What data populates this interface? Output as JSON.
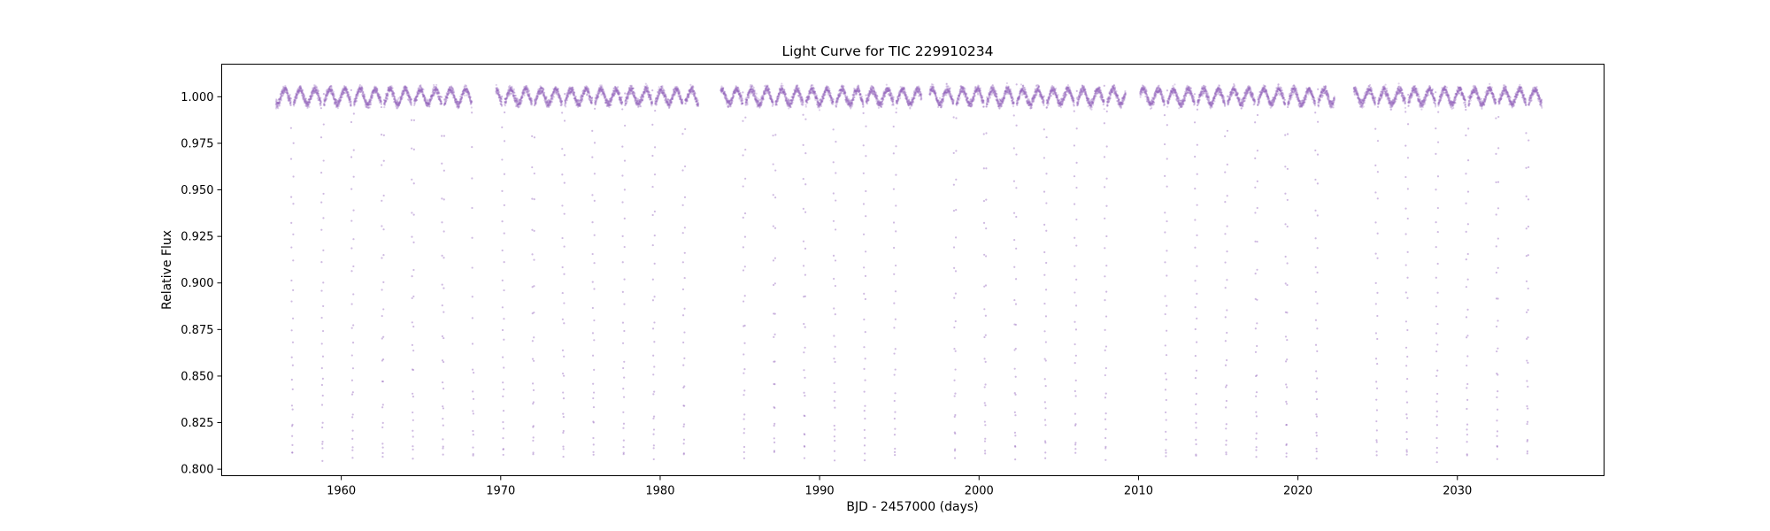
{
  "chart_data": {
    "type": "scatter",
    "title": "Light Curve for TIC 229910234",
    "xlabel": "BJD - 2457000 (days)",
    "ylabel": "Relative Flux",
    "xlim": [
      1952.5,
      2039.2
    ],
    "ylim": [
      0.7965,
      1.0175
    ],
    "xticks": [
      1960,
      1970,
      1980,
      1990,
      2000,
      2010,
      2020,
      2030
    ],
    "xtick_labels": [
      "1960",
      "1970",
      "1980",
      "1990",
      "2000",
      "2010",
      "2020",
      "2030"
    ],
    "yticks": [
      0.8,
      0.825,
      0.85,
      0.875,
      0.9,
      0.925,
      0.95,
      0.975,
      1.0
    ],
    "ytick_labels": [
      "0.800",
      "0.825",
      "0.850",
      "0.875",
      "0.900",
      "0.925",
      "0.950",
      "0.975",
      "1.000"
    ],
    "grid": false,
    "marker_color": "#9467bd",
    "series": [
      {
        "data_segments": [
          [
            1955.9,
            1968.3
          ],
          [
            1969.7,
            1982.4
          ],
          [
            1983.8,
            1996.4
          ],
          [
            1996.9,
            2009.2
          ],
          [
            2010.1,
            2022.3
          ],
          [
            2023.5,
            2035.3
          ]
        ],
        "eclipse_period_days": 1.889,
        "primary_eclipse_times": [
          1956.93,
          1958.82,
          1960.71,
          1962.6,
          1964.49,
          1966.38,
          1968.27,
          1970.16,
          1972.04,
          1973.93,
          1975.82,
          1977.71,
          1979.6,
          1981.49,
          1985.27,
          1987.16,
          1989.05,
          1990.94,
          1992.83,
          1994.72,
          1998.49,
          2000.38,
          2002.27,
          2004.16,
          2006.05,
          2007.94,
          2011.72,
          2013.61,
          2015.5,
          2017.39,
          2019.28,
          2021.17,
          2023.06,
          2024.94,
          2026.83,
          2028.72,
          2030.61,
          2032.5,
          2034.39
        ],
        "out_of_eclipse_flux_range": [
          0.9955,
          1.0045
        ],
        "eclipse_minimum_flux": 0.806
      }
    ]
  }
}
